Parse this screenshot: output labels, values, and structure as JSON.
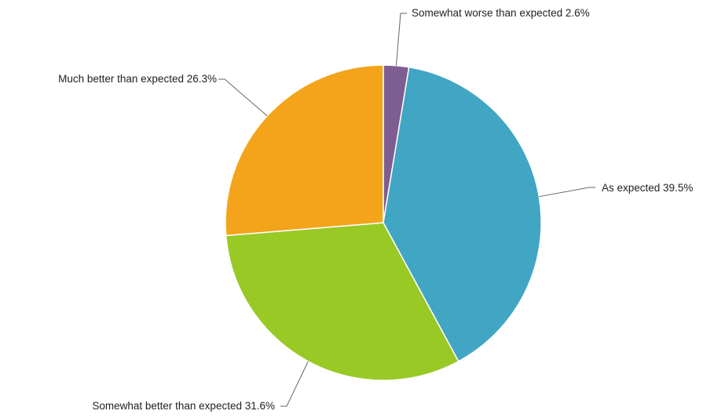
{
  "chart_data": {
    "type": "pie",
    "start_angle_deg": 0,
    "direction": "clockwise",
    "slices": [
      {
        "label": "Somewhat worse than expected 2.6%",
        "value": 2.6,
        "color": "#7e5d91"
      },
      {
        "label": "As expected 39.5%",
        "value": 39.5,
        "color": "#41a5c4"
      },
      {
        "label": "Somewhat better than expected 31.6%",
        "value": 31.6,
        "color": "#98c925"
      },
      {
        "label": "Much better than expected 26.3%",
        "value": 26.3,
        "color": "#f4a41a"
      }
    ]
  }
}
